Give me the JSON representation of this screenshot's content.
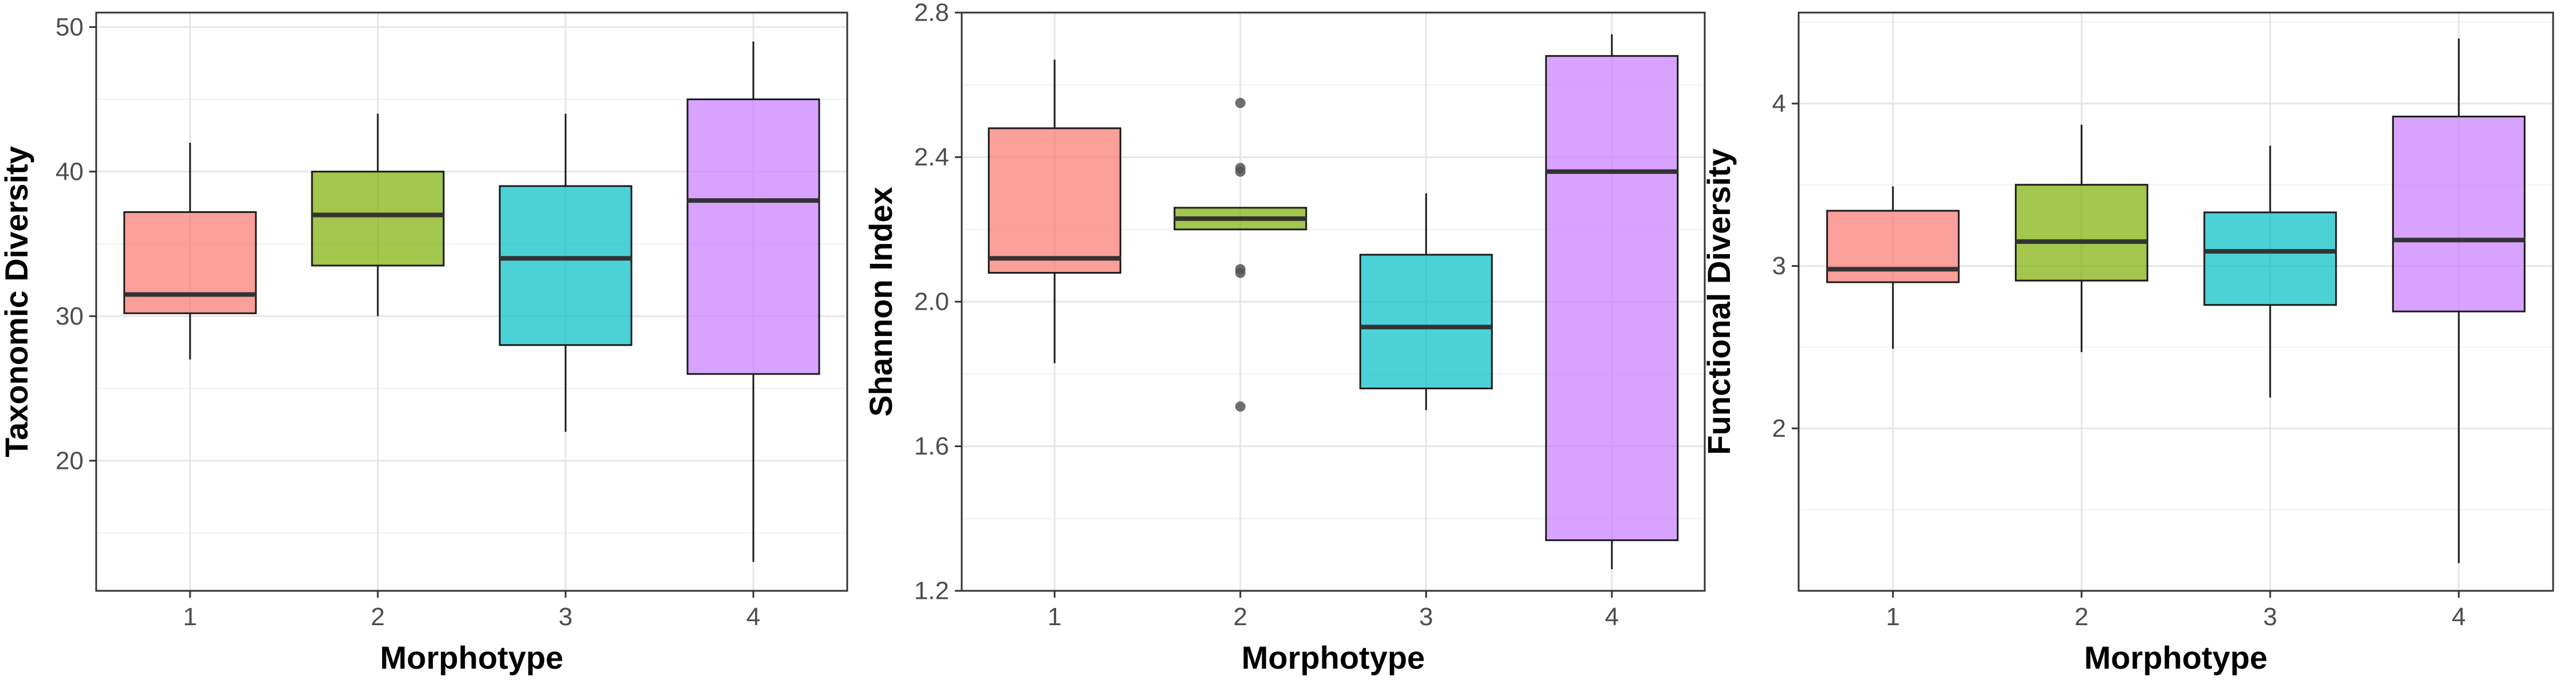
{
  "figure": {
    "colors": {
      "morphotype_fills": [
        "#F8766D",
        "#7CAE00",
        "#00BFC4",
        "#C77CFF"
      ],
      "box_outline": "#1a1a1a",
      "grid_major": "#e6e6e6",
      "grid_minor": "#f2f2f2",
      "panel_border": "#333333",
      "outlier": "#555555"
    }
  },
  "chart_data": [
    {
      "type": "box",
      "xlabel": "Morphotype",
      "ylabel": "Taxonomic Diversity",
      "categories": [
        "1",
        "2",
        "3",
        "4"
      ],
      "ylim": [
        11,
        51
      ],
      "y_ticks": [
        20,
        30,
        40,
        50
      ],
      "grid": true,
      "boxes": [
        {
          "category": "1",
          "whisker_low": 27,
          "q1": 30.2,
          "median": 31.5,
          "q3": 37.2,
          "whisker_high": 42,
          "outliers": []
        },
        {
          "category": "2",
          "whisker_low": 30,
          "q1": 33.5,
          "median": 37.0,
          "q3": 40.0,
          "whisker_high": 44,
          "outliers": []
        },
        {
          "category": "3",
          "whisker_low": 22,
          "q1": 28.0,
          "median": 34.0,
          "q3": 39.0,
          "whisker_high": 44,
          "outliers": []
        },
        {
          "category": "4",
          "whisker_low": 13,
          "q1": 26.0,
          "median": 38.0,
          "q3": 45.0,
          "whisker_high": 49,
          "outliers": []
        }
      ]
    },
    {
      "type": "box",
      "xlabel": "Morphotype",
      "ylabel": "Shannon Index",
      "categories": [
        "1",
        "2",
        "3",
        "4"
      ],
      "ylim": [
        1.2,
        2.8
      ],
      "y_ticks": [
        1.2,
        1.6,
        2.0,
        2.4,
        2.8
      ],
      "y_tick_labels": [
        "1.2",
        "1.6",
        "2.0",
        "2.4",
        "2.8"
      ],
      "grid": true,
      "boxes": [
        {
          "category": "1",
          "whisker_low": 1.83,
          "q1": 2.08,
          "median": 2.12,
          "q3": 2.48,
          "whisker_high": 2.67,
          "outliers": []
        },
        {
          "category": "2",
          "whisker_low": 2.2,
          "q1": 2.2,
          "median": 2.23,
          "q3": 2.26,
          "whisker_high": 2.26,
          "outliers": [
            2.55,
            2.37,
            2.36,
            2.09,
            2.08,
            1.71
          ]
        },
        {
          "category": "3",
          "whisker_low": 1.7,
          "q1": 1.76,
          "median": 1.93,
          "q3": 2.13,
          "whisker_high": 2.3,
          "outliers": []
        },
        {
          "category": "4",
          "whisker_low": 1.26,
          "q1": 1.34,
          "median": 2.36,
          "q3": 2.68,
          "whisker_high": 2.74,
          "outliers": []
        }
      ]
    },
    {
      "type": "box",
      "xlabel": "Morphotype",
      "ylabel": "Functional Diversity",
      "categories": [
        "1",
        "2",
        "3",
        "4"
      ],
      "ylim": [
        1.0,
        4.56
      ],
      "y_ticks": [
        2,
        3,
        4
      ],
      "grid": true,
      "boxes": [
        {
          "category": "1",
          "whisker_low": 2.49,
          "q1": 2.9,
          "median": 2.98,
          "q3": 3.34,
          "whisker_high": 3.49,
          "outliers": []
        },
        {
          "category": "2",
          "whisker_low": 2.47,
          "q1": 2.91,
          "median": 3.15,
          "q3": 3.5,
          "whisker_high": 3.87,
          "outliers": []
        },
        {
          "category": "3",
          "whisker_low": 2.19,
          "q1": 2.76,
          "median": 3.09,
          "q3": 3.33,
          "whisker_high": 3.74,
          "outliers": []
        },
        {
          "category": "4",
          "whisker_low": 1.17,
          "q1": 2.72,
          "median": 3.16,
          "q3": 3.92,
          "whisker_high": 4.4,
          "outliers": []
        }
      ]
    }
  ]
}
